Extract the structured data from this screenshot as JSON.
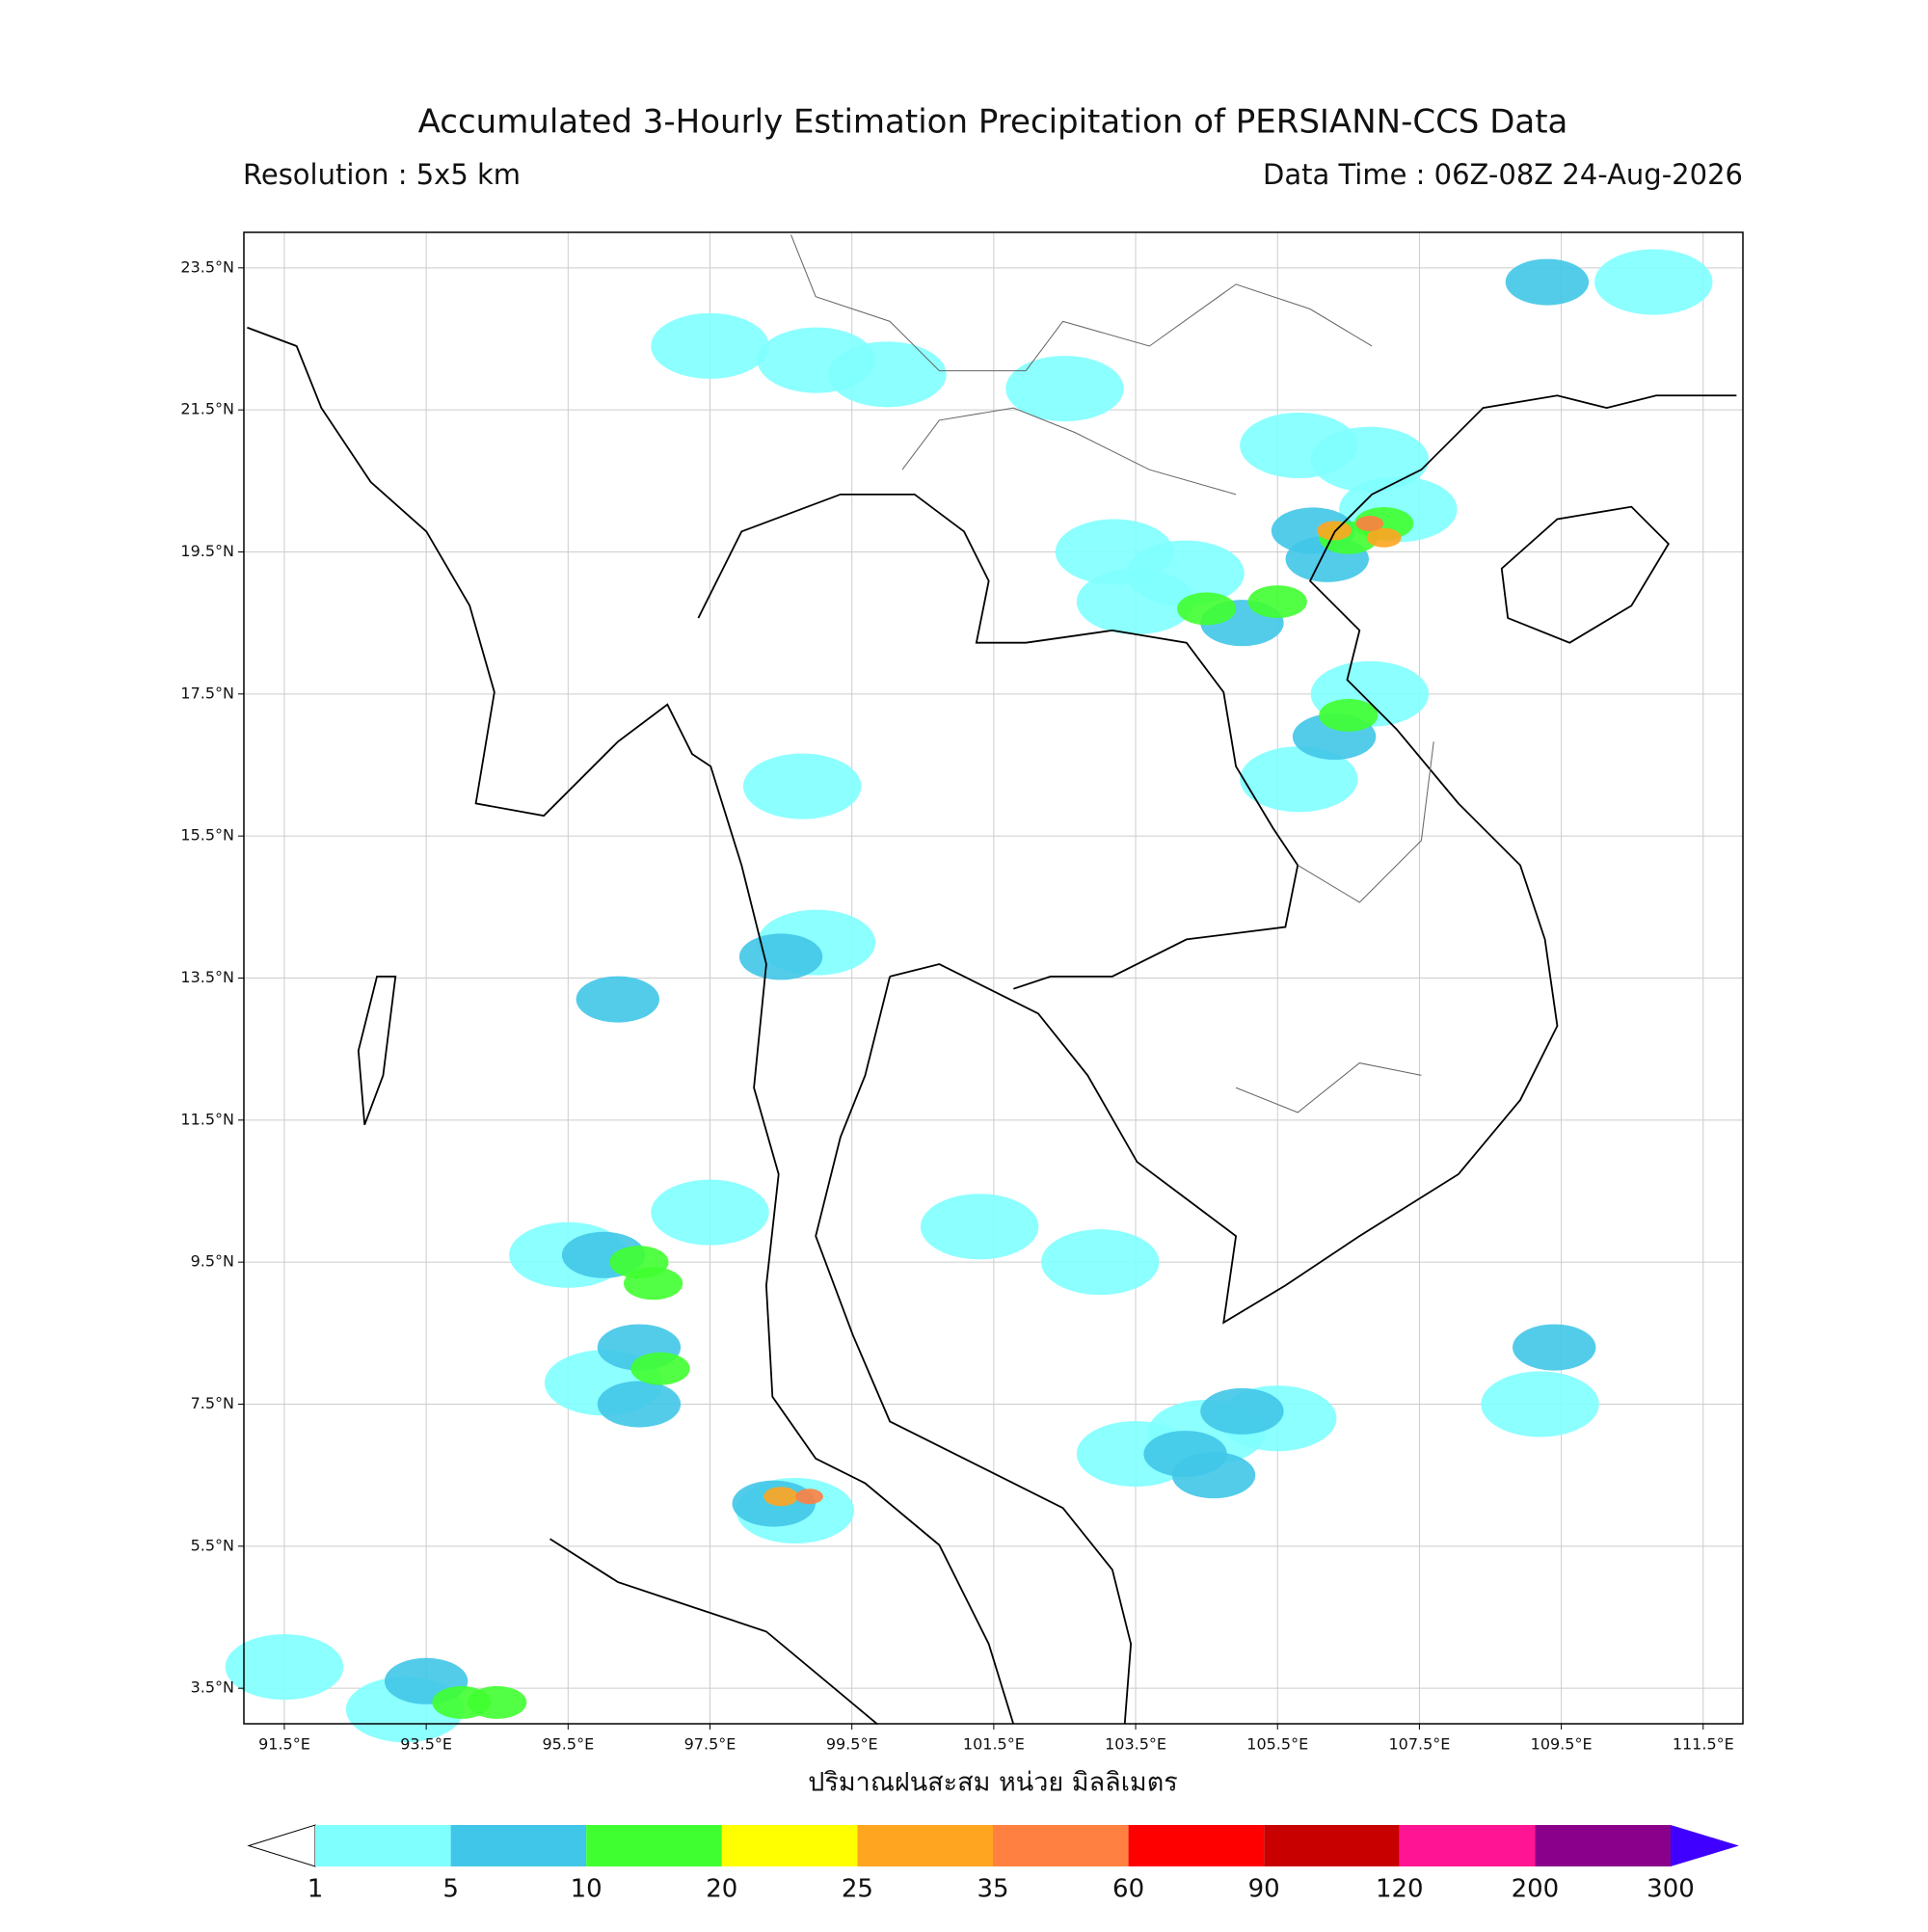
{
  "chart_data": {
    "type": "map",
    "title": "Accumulated 3-Hourly Estimation Precipitation of PERSIANN-CCS Data",
    "subtitle_left": "Resolution : 5x5 km",
    "subtitle_right": "Data Time : 06Z-08Z 24-Aug-2026",
    "x_label": "ปริมาณฝนสะสม หน่วย มิลลิเมตร",
    "xlim": [
      90.93,
      112.06
    ],
    "ylim": [
      3.0,
      24.0
    ],
    "grid": true,
    "xticks": [
      {
        "value": 91.5,
        "label": "91.5°E"
      },
      {
        "value": 93.5,
        "label": "93.5°E"
      },
      {
        "value": 95.5,
        "label": "95.5°E"
      },
      {
        "value": 97.5,
        "label": "97.5°E"
      },
      {
        "value": 99.5,
        "label": "99.5°E"
      },
      {
        "value": 101.5,
        "label": "101.5°E"
      },
      {
        "value": 103.5,
        "label": "103.5°E"
      },
      {
        "value": 105.5,
        "label": "105.5°E"
      },
      {
        "value": 107.5,
        "label": "107.5°E"
      },
      {
        "value": 109.5,
        "label": "109.5°E"
      },
      {
        "value": 111.5,
        "label": "111.5°E"
      }
    ],
    "yticks": [
      {
        "value": 3.5,
        "label": "3.5°N"
      },
      {
        "value": 5.5,
        "label": "5.5°N"
      },
      {
        "value": 7.5,
        "label": "7.5°N"
      },
      {
        "value": 9.5,
        "label": "9.5°N"
      },
      {
        "value": 11.5,
        "label": "11.5°N"
      },
      {
        "value": 13.5,
        "label": "13.5°N"
      },
      {
        "value": 15.5,
        "label": "15.5°N"
      },
      {
        "value": 17.5,
        "label": "17.5°N"
      },
      {
        "value": 19.5,
        "label": "19.5°N"
      },
      {
        "value": 21.5,
        "label": "21.5°N"
      },
      {
        "value": 23.5,
        "label": "23.5°N"
      }
    ],
    "colorbar": {
      "levels": [
        1,
        5,
        10,
        20,
        25,
        35,
        60,
        90,
        120,
        200,
        300
      ],
      "colors": [
        "#80ffff",
        "#40c6e8",
        "#40ff30",
        "#ffff00",
        "#ffa520",
        "#ff8040",
        "#ff0000",
        "#c80000",
        "#ff1493",
        "#8b008b"
      ],
      "under_color": "#ffffff",
      "over_color": "#4000ff"
    },
    "cells": [
      {
        "lon": 106.0,
        "lat": 19.8,
        "value": 6
      },
      {
        "lon": 107.2,
        "lat": 20.1,
        "value": 3
      },
      {
        "lon": 106.2,
        "lat": 19.4,
        "value": 6
      },
      {
        "lon": 106.5,
        "lat": 19.7,
        "value": 12
      },
      {
        "lon": 107.0,
        "lat": 19.9,
        "value": 12
      },
      {
        "lon": 106.3,
        "lat": 19.8,
        "value": 30
      },
      {
        "lon": 107.0,
        "lat": 19.7,
        "value": 25
      },
      {
        "lon": 106.8,
        "lat": 19.9,
        "value": 40
      },
      {
        "lon": 105.5,
        "lat": 18.8,
        "value": 10
      },
      {
        "lon": 104.5,
        "lat": 18.7,
        "value": 12
      },
      {
        "lon": 105.0,
        "lat": 18.5,
        "value": 6
      },
      {
        "lon": 103.5,
        "lat": 18.8,
        "value": 3
      },
      {
        "lon": 104.2,
        "lat": 19.2,
        "value": 3
      },
      {
        "lon": 103.2,
        "lat": 19.5,
        "value": 2
      },
      {
        "lon": 106.8,
        "lat": 20.8,
        "value": 2
      },
      {
        "lon": 106.3,
        "lat": 16.9,
        "value": 8
      },
      {
        "lon": 106.5,
        "lat": 17.2,
        "value": 15
      },
      {
        "lon": 106.8,
        "lat": 17.5,
        "value": 3
      },
      {
        "lon": 105.8,
        "lat": 16.3,
        "value": 3
      },
      {
        "lon": 95.5,
        "lat": 9.6,
        "value": 3
      },
      {
        "lon": 96.0,
        "lat": 9.6,
        "value": 8
      },
      {
        "lon": 96.5,
        "lat": 9.5,
        "value": 12
      },
      {
        "lon": 96.7,
        "lat": 9.2,
        "value": 12
      },
      {
        "lon": 97.5,
        "lat": 10.2,
        "value": 3
      },
      {
        "lon": 96.5,
        "lat": 8.3,
        "value": 8
      },
      {
        "lon": 96.8,
        "lat": 8.0,
        "value": 12
      },
      {
        "lon": 96.0,
        "lat": 7.8,
        "value": 3
      },
      {
        "lon": 96.5,
        "lat": 7.5,
        "value": 6
      },
      {
        "lon": 98.4,
        "lat": 6.1,
        "value": 8
      },
      {
        "lon": 98.7,
        "lat": 6.0,
        "value": 3
      },
      {
        "lon": 98.5,
        "lat": 6.2,
        "value": 25
      },
      {
        "lon": 98.9,
        "lat": 6.2,
        "value": 40
      },
      {
        "lon": 93.5,
        "lat": 3.6,
        "value": 6
      },
      {
        "lon": 93.2,
        "lat": 3.2,
        "value": 2
      },
      {
        "lon": 94.0,
        "lat": 3.3,
        "value": 12
      },
      {
        "lon": 94.5,
        "lat": 3.3,
        "value": 12
      },
      {
        "lon": 91.5,
        "lat": 3.8,
        "value": 2
      },
      {
        "lon": 105.0,
        "lat": 7.4,
        "value": 6
      },
      {
        "lon": 104.5,
        "lat": 7.1,
        "value": 3
      },
      {
        "lon": 104.2,
        "lat": 6.8,
        "value": 6
      },
      {
        "lon": 104.6,
        "lat": 6.5,
        "value": 6
      },
      {
        "lon": 105.5,
        "lat": 7.3,
        "value": 3
      },
      {
        "lon": 103.5,
        "lat": 6.8,
        "value": 3
      },
      {
        "lon": 109.4,
        "lat": 8.3,
        "value": 8
      },
      {
        "lon": 109.2,
        "lat": 7.5,
        "value": 2
      },
      {
        "lon": 99.0,
        "lat": 14.0,
        "value": 3
      },
      {
        "lon": 98.5,
        "lat": 13.8,
        "value": 6
      },
      {
        "lon": 96.2,
        "lat": 13.2,
        "value": 6
      },
      {
        "lon": 98.8,
        "lat": 16.2,
        "value": 2
      },
      {
        "lon": 101.3,
        "lat": 10.0,
        "value": 3
      },
      {
        "lon": 103.0,
        "lat": 9.5,
        "value": 2
      },
      {
        "lon": 97.5,
        "lat": 22.4,
        "value": 3
      },
      {
        "lon": 99.0,
        "lat": 22.2,
        "value": 3
      },
      {
        "lon": 100.0,
        "lat": 22.0,
        "value": 2
      },
      {
        "lon": 102.5,
        "lat": 21.8,
        "value": 2
      },
      {
        "lon": 105.8,
        "lat": 21.0,
        "value": 2
      },
      {
        "lon": 110.8,
        "lat": 23.3,
        "value": 2
      },
      {
        "lon": 109.3,
        "lat": 23.3,
        "value": 6
      }
    ]
  }
}
